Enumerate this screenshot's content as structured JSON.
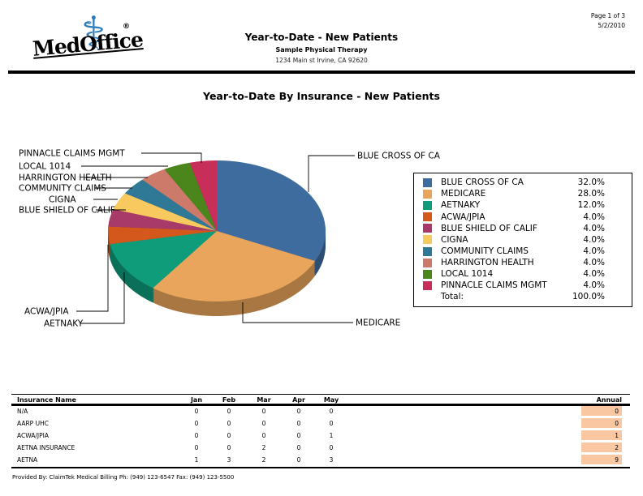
{
  "page": {
    "logo": {
      "text": "MedOffice",
      "reg": "®",
      "caduceus_icon": "⚕"
    },
    "header": {
      "title": "Year-to-Date - New Patients",
      "subtitle": "Sample Physical Therapy",
      "address": "1234 Main st Irvine, CA  92620",
      "page_info": "Page 1 of 3",
      "date": "5/2/2010"
    },
    "chart_title": "Year-to-Date By Insurance - New Patients",
    "footer": "Provided By: ClaimTek Medical Billing    Ph: (949) 123-6547 Fax: (949) 123-5500"
  },
  "chart_data": {
    "type": "pie",
    "style": "3d",
    "title": "Year-to-Date By Insurance - New Patients",
    "legend_position": "right",
    "labels": [
      "BLUE CROSS OF CA",
      "MEDICARE",
      "AETNAKY",
      "ACWA/JPIA",
      "BLUE SHIELD OF CALIF",
      "CIGNA",
      "COMMUNITY CLAIMS",
      "HARRINGTON HEALTH",
      "LOCAL 1014",
      "PINNACLE CLAIMS MGMT"
    ],
    "values": [
      32.0,
      28.0,
      12.0,
      4.0,
      4.0,
      4.0,
      4.0,
      4.0,
      4.0,
      4.0
    ],
    "percent_labels": [
      "32.0%",
      "28.0%",
      "12.0%",
      "4.0%",
      "4.0%",
      "4.0%",
      "4.0%",
      "4.0%",
      "4.0%",
      "4.0%"
    ],
    "colors": [
      "#3E6C9E",
      "#EAA55C",
      "#0F9C7B",
      "#D4581C",
      "#A73A68",
      "#F8C95E",
      "#2F7896",
      "#CE7A6B",
      "#4A861C",
      "#C72F5A"
    ],
    "total_label": "Total:",
    "total_percent": "100.0%"
  },
  "table": {
    "columns": [
      "Insurance Name",
      "Jan",
      "Feb",
      "Mar",
      "Apr",
      "May",
      "Annual"
    ],
    "annual_highlight_color": "#F9C8A3",
    "rows": [
      {
        "name": "N/A",
        "monthly": [
          0,
          0,
          0,
          0,
          0
        ],
        "annual": 0
      },
      {
        "name": "AARP UHC",
        "monthly": [
          0,
          0,
          0,
          0,
          0
        ],
        "annual": 0
      },
      {
        "name": "ACWA/JPIA",
        "monthly": [
          0,
          0,
          0,
          0,
          1
        ],
        "annual": 1
      },
      {
        "name": "AETNA INSURANCE",
        "monthly": [
          0,
          0,
          2,
          0,
          0
        ],
        "annual": 2
      },
      {
        "name": "AETNA",
        "monthly": [
          1,
          3,
          2,
          0,
          3
        ],
        "annual": 9
      }
    ]
  }
}
